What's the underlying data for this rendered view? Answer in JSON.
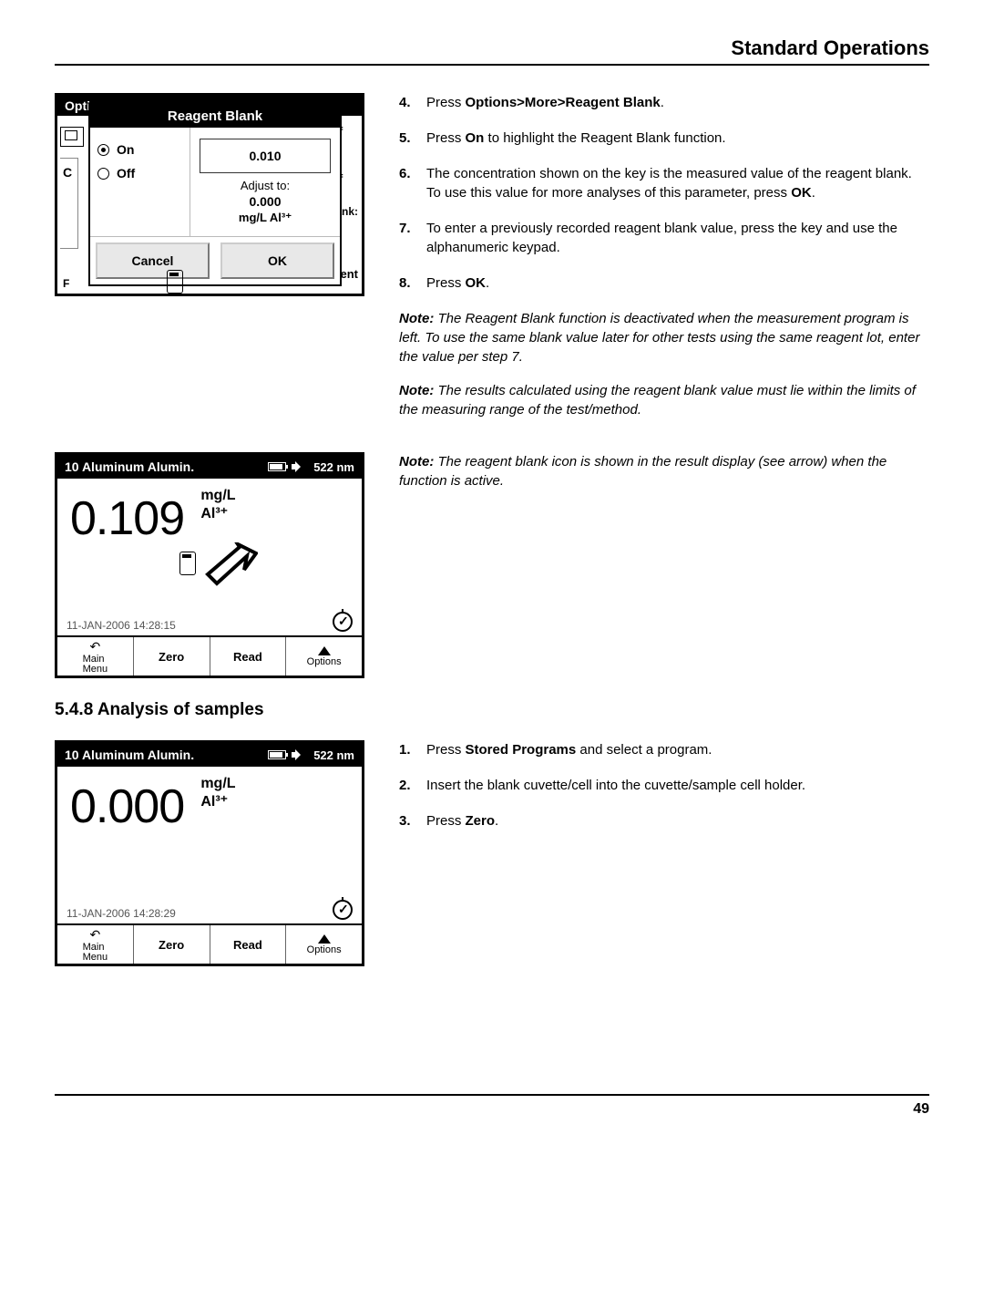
{
  "header": {
    "title": "Standard Operations"
  },
  "shot1": {
    "options_label": "Optic",
    "popup_title": "Reagent Blank",
    "radio_on": "On",
    "radio_off": "Off",
    "value": "0.010",
    "adjust_label": "Adjust to:",
    "adjust_value": "0.000",
    "unit": "mg/L Al³⁺",
    "cancel": "Cancel",
    "ok": "OK",
    "bg": {
      "ff1": "ff",
      "d": "d",
      "ff2": "ff",
      "ank": "ank:",
      "ent": "ent"
    }
  },
  "steps_a": [
    {
      "n": "4.",
      "html": "Press <b>Options>More>Reagent Blank</b>."
    },
    {
      "n": "5.",
      "html": "Press <b>On</b> to highlight the Reagent Blank function."
    },
    {
      "n": "6.",
      "html": "The concentration shown on the key is the measured value of the reagent blank. To use this value for more analyses of this parameter, press <b>OK</b>."
    },
    {
      "n": "7.",
      "html": "To enter a previously recorded reagent blank value, press the key and use the alphanumeric keypad."
    },
    {
      "n": "8.",
      "html": "Press <b>OK</b>."
    }
  ],
  "notes_a": [
    "The Reagent Blank function is deactivated when the measurement program is left. To use the same blank value later for other tests using the same reagent lot, enter the value per step 7.",
    "The results calculated using the reagent blank value must lie within the limits of the measuring range of the test/method."
  ],
  "shot2": {
    "title": "10 Aluminum Alumin.",
    "nm": "522 nm",
    "value": "0.109",
    "unit1": "mg/L",
    "unit2": "Al³⁺",
    "datetime": "11-JAN-2006  14:28:15",
    "btns": {
      "main": "Main\nMenu",
      "zero": "Zero",
      "read": "Read",
      "options": "Options"
    }
  },
  "note_b": "The reagent blank icon is shown in the result display (see arrow) when the function is active.",
  "section548": "5.4.8  Analysis of samples",
  "shot3": {
    "title": "10 Aluminum Alumin.",
    "nm": "522 nm",
    "value": "0.000",
    "unit1": "mg/L",
    "unit2": "Al³⁺",
    "datetime": "11-JAN-2006  14:28:29",
    "btns": {
      "main": "Main\nMenu",
      "zero": "Zero",
      "read": "Read",
      "options": "Options"
    }
  },
  "steps_b": [
    {
      "n": "1.",
      "html": "Press <b>Stored Programs</b> and select a program."
    },
    {
      "n": "2.",
      "html": "Insert the blank cuvette/cell into the cuvette/sample cell holder."
    },
    {
      "n": "3.",
      "html": "Press <b>Zero</b>."
    }
  ],
  "page": "49",
  "note_label": "Note:"
}
